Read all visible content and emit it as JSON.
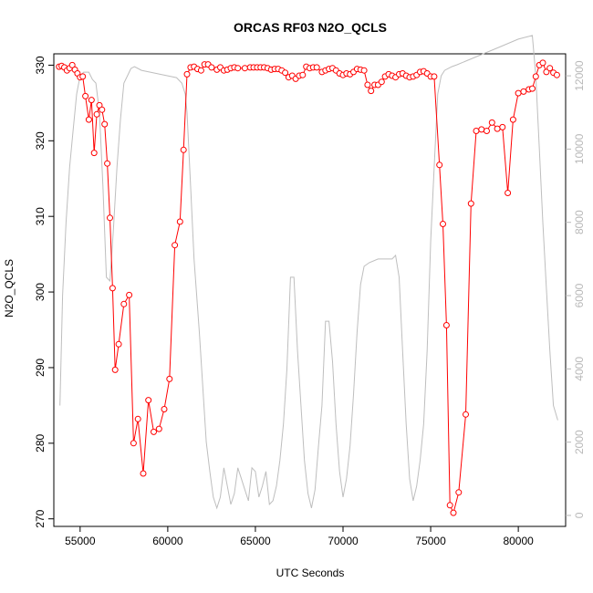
{
  "chart_data": {
    "type": "line",
    "title": "ORCAS RF03 N2O_QCLS",
    "xlabel": "UTC Seconds",
    "ylabel": "N2O_QCLS",
    "xlim": [
      53500,
      82700
    ],
    "ylim": [
      269,
      331.5
    ],
    "y2lim": [
      -300,
      12600
    ],
    "xticks": [
      55000,
      60000,
      65000,
      70000,
      75000,
      80000
    ],
    "yticks": [
      270,
      280,
      290,
      300,
      310,
      320,
      330
    ],
    "y2ticks": [
      0,
      2000,
      4000,
      6000,
      8000,
      10000,
      12000
    ],
    "grid": false,
    "legend": "none",
    "colors": {
      "primary": "#ff0000",
      "secondary": "#bebebe",
      "axis": "#000000",
      "secondary_axis": "#b8b8b8"
    },
    "series": [
      {
        "axis": "left",
        "style": "line+markers",
        "x": [
          53800,
          53950,
          54100,
          54250,
          54400,
          54550,
          54700,
          54850,
          55000,
          55150,
          55300,
          55500,
          55650,
          55800,
          55950,
          56100,
          56250,
          56400,
          56550,
          56700,
          56850,
          57000,
          57200,
          57500,
          57800,
          58050,
          58300,
          58600,
          58900,
          59200,
          59500,
          59800,
          60100,
          60400,
          60700,
          60900,
          61100,
          61300,
          61500,
          61700,
          61900,
          62100,
          62300,
          62500,
          62800,
          63000,
          63200,
          63400,
          63600,
          63800,
          64000,
          64400,
          64700,
          64900,
          65100,
          65300,
          65500,
          65700,
          65900,
          66100,
          66300,
          66500,
          66700,
          66900,
          67100,
          67300,
          67500,
          67700,
          67900,
          68100,
          68300,
          68500,
          68800,
          69000,
          69200,
          69400,
          69600,
          69800,
          70000,
          70200,
          70400,
          70600,
          70800,
          71000,
          71200,
          71400,
          71600,
          71800,
          72000,
          72200,
          72400,
          72600,
          72800,
          73000,
          73200,
          73400,
          73600,
          73800,
          74000,
          74200,
          74400,
          74600,
          74800,
          75000,
          75200,
          75500,
          75700,
          75900,
          76100,
          76300,
          76600,
          77000,
          77300,
          77600,
          77900,
          78200,
          78500,
          78800,
          79100,
          79400,
          79700,
          80000,
          80300,
          80600,
          80800,
          81000,
          81200,
          81400,
          81600,
          81800,
          82000,
          82200
        ],
        "y": [
          329.8,
          329.9,
          329.7,
          329.3,
          329.6,
          330.0,
          329.4,
          328.9,
          328.4,
          328.5,
          325.9,
          322.8,
          325.4,
          318.4,
          323.5,
          324.7,
          324.1,
          322.2,
          317.0,
          309.8,
          300.5,
          289.7,
          293.1,
          298.4,
          299.6,
          280.0,
          283.2,
          276.0,
          285.7,
          281.5,
          281.9,
          284.5,
          288.5,
          306.2,
          309.3,
          318.8,
          328.8,
          329.7,
          329.8,
          329.5,
          329.3,
          330.1,
          330.1,
          329.7,
          329.4,
          329.7,
          329.3,
          329.4,
          329.6,
          329.7,
          329.6,
          329.6,
          329.7,
          329.7,
          329.7,
          329.7,
          329.7,
          329.6,
          329.4,
          329.5,
          329.5,
          329.3,
          329.0,
          328.4,
          328.6,
          328.2,
          328.6,
          328.7,
          329.8,
          329.6,
          329.7,
          329.7,
          329.1,
          329.3,
          329.5,
          329.6,
          329.3,
          328.9,
          328.7,
          328.9,
          328.8,
          329.1,
          329.5,
          329.4,
          329.3,
          327.4,
          326.6,
          327.4,
          327.4,
          327.8,
          328.5,
          328.8,
          328.6,
          328.4,
          328.8,
          328.9,
          328.6,
          328.4,
          328.5,
          328.7,
          329.1,
          329.2,
          328.9,
          328.5,
          328.5,
          316.8,
          309.0,
          295.6,
          271.8,
          270.8,
          273.5,
          283.8,
          311.7,
          321.3,
          321.5,
          321.3,
          322.4,
          321.6,
          321.8,
          313.1,
          322.8,
          326.3,
          326.5,
          326.8,
          326.9,
          328.5,
          330.0,
          330.3,
          329.1,
          329.6,
          329.0,
          328.7
        ]
      },
      {
        "axis": "right",
        "style": "line",
        "x": [
          53850,
          54000,
          54200,
          54400,
          54600,
          54800,
          55000,
          55200,
          55500,
          55700,
          55900,
          56100,
          56300,
          56500,
          56700,
          56900,
          57100,
          57300,
          57500,
          57700,
          57900,
          58100,
          58500,
          59000,
          59500,
          60000,
          60500,
          60800,
          61000,
          61100,
          61300,
          61500,
          61800,
          62000,
          62200,
          62400,
          62600,
          62800,
          63000,
          63200,
          63400,
          63600,
          63800,
          64000,
          64200,
          64400,
          64600,
          64800,
          65000,
          65200,
          65400,
          65600,
          65800,
          66000,
          66200,
          66400,
          66600,
          66800,
          67000,
          67200,
          67400,
          67600,
          67800,
          68000,
          68200,
          68400,
          68600,
          68800,
          69000,
          69200,
          69400,
          69600,
          69800,
          70000,
          70200,
          70400,
          70600,
          70800,
          71000,
          71200,
          71500,
          72000,
          72500,
          72800,
          73000,
          73200,
          73400,
          73600,
          73800,
          74000,
          74200,
          74400,
          74600,
          74800,
          75000,
          75200,
          75400,
          75600,
          75800,
          76000,
          76200,
          76500,
          77000,
          78000,
          79000,
          80000,
          80800,
          81000,
          81200,
          81400,
          81600,
          81800,
          82000,
          82250
        ],
        "y": [
          3000,
          6000,
          8000,
          9500,
          10500,
          11500,
          12000,
          12100,
          12100,
          11900,
          11800,
          11000,
          9000,
          6500,
          6400,
          7800,
          9500,
          10800,
          11800,
          12000,
          12200,
          12250,
          12150,
          12100,
          12050,
          12000,
          11950,
          11800,
          11500,
          11000,
          9000,
          7000,
          5000,
          3500,
          2000,
          1200,
          500,
          200,
          500,
          1300,
          800,
          300,
          600,
          1300,
          1000,
          700,
          400,
          1300,
          1200,
          500,
          800,
          1200,
          300,
          400,
          800,
          1500,
          2500,
          4000,
          6500,
          6500,
          4500,
          3000,
          1500,
          600,
          200,
          700,
          1900,
          3000,
          5300,
          5300,
          4200,
          2500,
          1200,
          500,
          1000,
          1900,
          3300,
          5000,
          6300,
          6800,
          6900,
          7000,
          7000,
          7000,
          7100,
          6500,
          4500,
          2500,
          1000,
          400,
          800,
          1500,
          2500,
          4500,
          7500,
          9500,
          11500,
          12000,
          12150,
          12200,
          12250,
          12300,
          12400,
          12600,
          12800,
          13000,
          13100,
          12000,
          10000,
          8000,
          6200,
          4500,
          3000,
          2600
        ]
      }
    ]
  }
}
